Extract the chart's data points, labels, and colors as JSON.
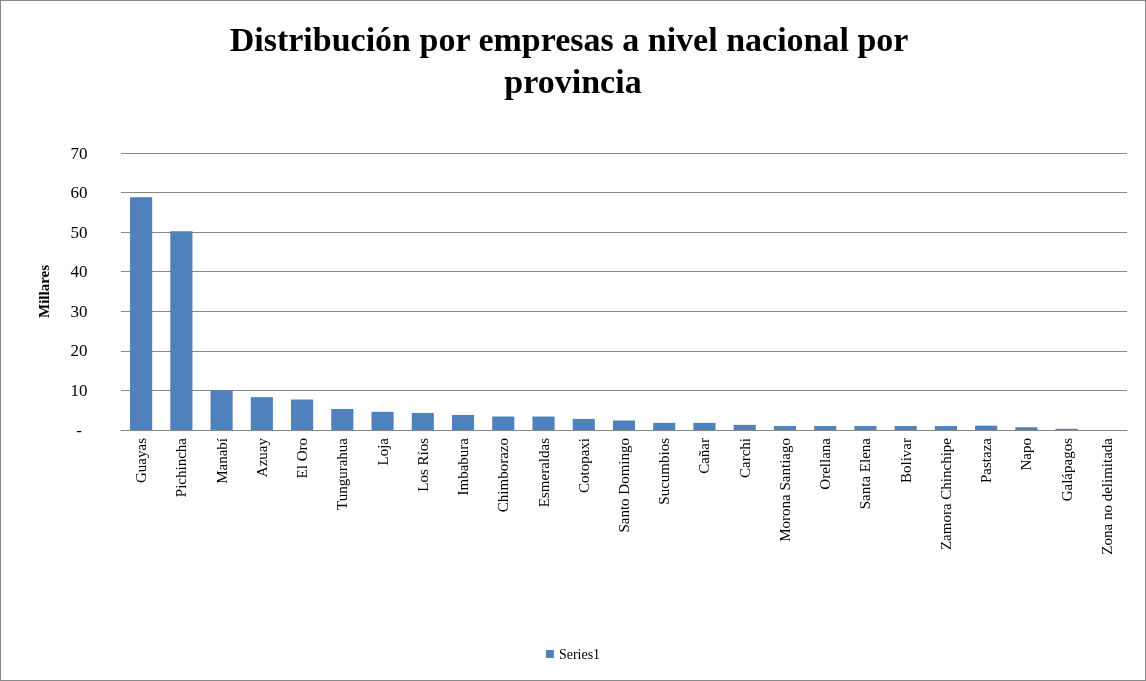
{
  "chart_data": {
    "type": "bar",
    "title": "Distribución por empresas a nivel nacional por provincia",
    "ylabel": "Millares",
    "categories": [
      "Guayas",
      "Pichincha",
      "Manabí",
      "Azuay",
      "El Oro",
      "Tungurahua",
      "Loja",
      "Los Ríos",
      "Imbabura",
      "Chimborazo",
      "Esmeraldas",
      "Cotopaxi",
      "Santo Domingo",
      "Sucumbios",
      "Cañar",
      "Carchi",
      "Morona Santiago",
      "Orellana",
      "Santa Elena",
      "Bolivar",
      "Zamora Chinchipe",
      "Pastaza",
      "Napo",
      "Galápagos",
      "Zona no delimitada"
    ],
    "series": [
      {
        "name": "Series1",
        "color": "#4f81bd",
        "values": [
          58.8,
          50.2,
          10,
          8.3,
          7.7,
          5.3,
          4.6,
          4.3,
          3.8,
          3.4,
          3.4,
          2.8,
          2.4,
          1.8,
          1.8,
          1.3,
          1.0,
          1.0,
          1.0,
          1.0,
          1.0,
          1.1,
          0.7,
          0.3,
          0
        ]
      }
    ],
    "ylim": [
      0,
      70
    ],
    "yticks": [
      {
        "value": 0,
        "label": "-"
      },
      10,
      20,
      30,
      40,
      50,
      60,
      70
    ],
    "grid": "y",
    "legend": "bottom"
  }
}
